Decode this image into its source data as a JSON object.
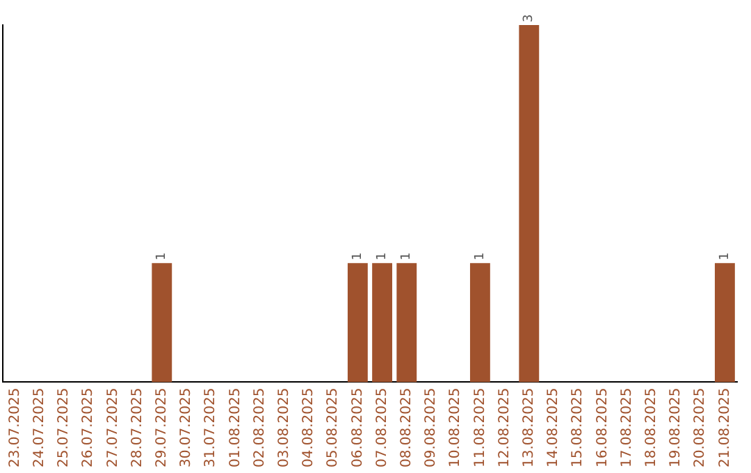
{
  "chart_data": {
    "type": "bar",
    "categories": [
      "23.07.2025",
      "24.07.2025",
      "25.07.2025",
      "26.07.2025",
      "27.07.2025",
      "28.07.2025",
      "29.07.2025",
      "30.07.2025",
      "31.07.2025",
      "01.08.2025",
      "02.08.2025",
      "03.08.2025",
      "04.08.2025",
      "05.08.2025",
      "06.08.2025",
      "07.08.2025",
      "08.08.2025",
      "09.08.2025",
      "10.08.2025",
      "11.08.2025",
      "12.08.2025",
      "13.08.2025",
      "14.08.2025",
      "15.08.2025",
      "16.08.2025",
      "17.08.2025",
      "18.08.2025",
      "19.08.2025",
      "20.08.2025",
      "21.08.2025"
    ],
    "values": [
      0,
      0,
      0,
      0,
      0,
      0,
      1,
      0,
      0,
      0,
      0,
      0,
      0,
      0,
      1,
      1,
      1,
      0,
      0,
      1,
      0,
      3,
      0,
      0,
      0,
      0,
      0,
      0,
      0,
      1
    ],
    "value_labels": [
      null,
      null,
      null,
      null,
      null,
      null,
      "1",
      null,
      null,
      null,
      null,
      null,
      null,
      null,
      "1",
      "1",
      "1",
      null,
      null,
      "1",
      null,
      "3",
      null,
      null,
      null,
      null,
      null,
      null,
      null,
      "1"
    ],
    "color": "#a0522d",
    "grid": false,
    "legend": false
  }
}
